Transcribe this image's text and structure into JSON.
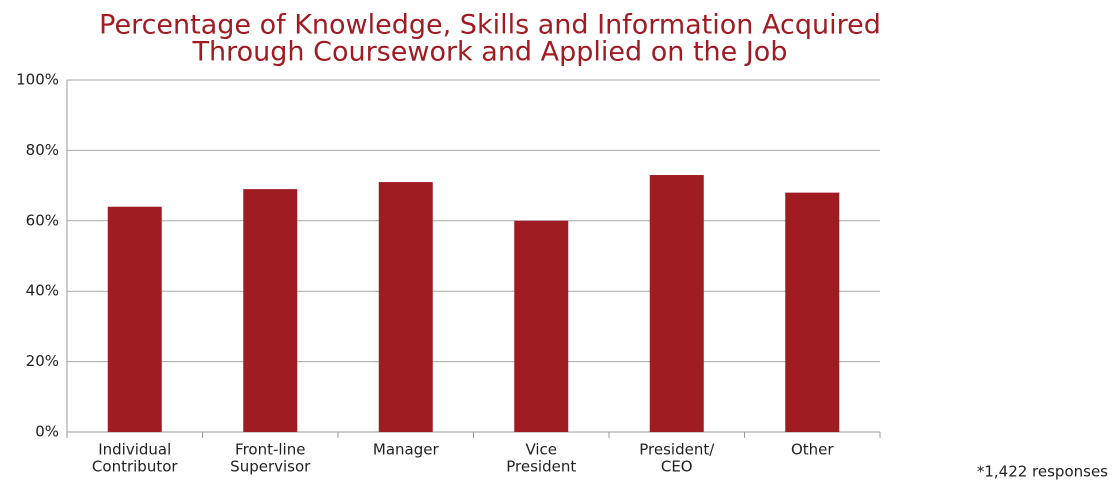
{
  "chart_data": {
    "type": "bar",
    "title": [
      "Percentage of Knowledge, Skills and Information Acquired",
      "Through Coursework and Applied on the Job"
    ],
    "categories": [
      [
        "Individual",
        "Contributor"
      ],
      [
        "Front-line",
        "Supervisor"
      ],
      [
        "Manager"
      ],
      [
        "Vice",
        "President"
      ],
      [
        "President/",
        "CEO"
      ],
      [
        "Other"
      ]
    ],
    "values": [
      64,
      69,
      71,
      60,
      73,
      68
    ],
    "color": "#9e1c22",
    "ylim": [
      0,
      100
    ],
    "yticks": [
      {
        "value": 0,
        "label": "0%"
      },
      {
        "value": 20,
        "label": "20%"
      },
      {
        "value": 40,
        "label": "40%"
      },
      {
        "value": 60,
        "label": "60%"
      },
      {
        "value": 80,
        "label": "80%"
      },
      {
        "value": 100,
        "label": "100%"
      }
    ],
    "grid": true,
    "annotations": [
      "*1,422 responses"
    ]
  }
}
